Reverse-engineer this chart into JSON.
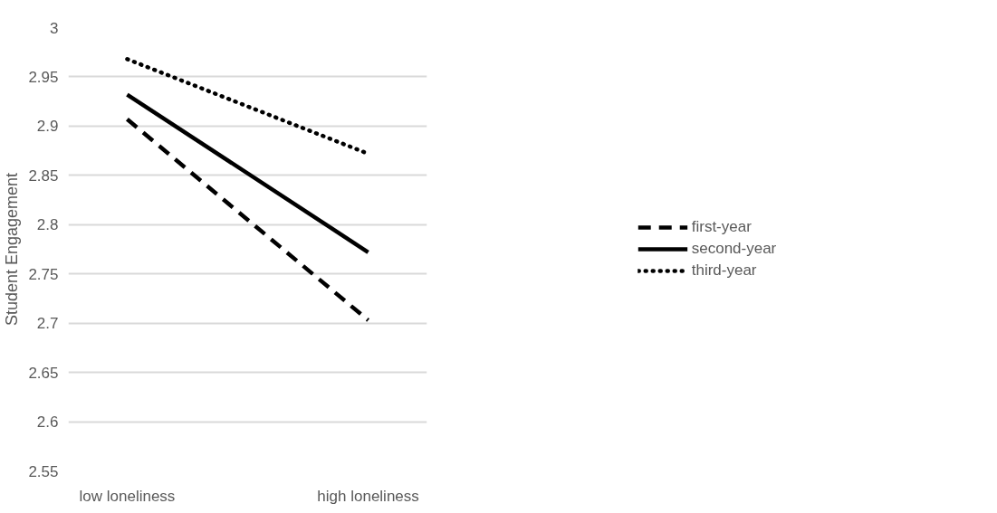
{
  "chart_data": {
    "type": "line",
    "ylabel": "Student Engagement",
    "categories": [
      "low loneliness",
      "high loneliness"
    ],
    "ylim": [
      2.55,
      3
    ],
    "yticks": [
      {
        "value": 2.55,
        "label": "2.55"
      },
      {
        "value": 2.6,
        "label": "2.6"
      },
      {
        "value": 2.65,
        "label": "2.65"
      },
      {
        "value": 2.7,
        "label": "2.7"
      },
      {
        "value": 2.75,
        "label": "2.75"
      },
      {
        "value": 2.8,
        "label": "2.8"
      },
      {
        "value": 2.85,
        "label": "2.85"
      },
      {
        "value": 2.9,
        "label": "2.9"
      },
      {
        "value": 2.95,
        "label": "2.95"
      },
      {
        "value": 3,
        "label": "3"
      }
    ],
    "grid": "y",
    "legend": "right",
    "marker": "none",
    "series": [
      {
        "name": "first-year",
        "color": "#000000",
        "line_style": "dashed",
        "values": [
          2.907,
          2.703
        ]
      },
      {
        "name": "second-year",
        "color": "#000000",
        "line_style": "solid",
        "values": [
          2.932,
          2.772
        ]
      },
      {
        "name": "third-year",
        "color": "#000000",
        "line_style": "dotted",
        "values": [
          2.968,
          2.872
        ]
      }
    ]
  }
}
